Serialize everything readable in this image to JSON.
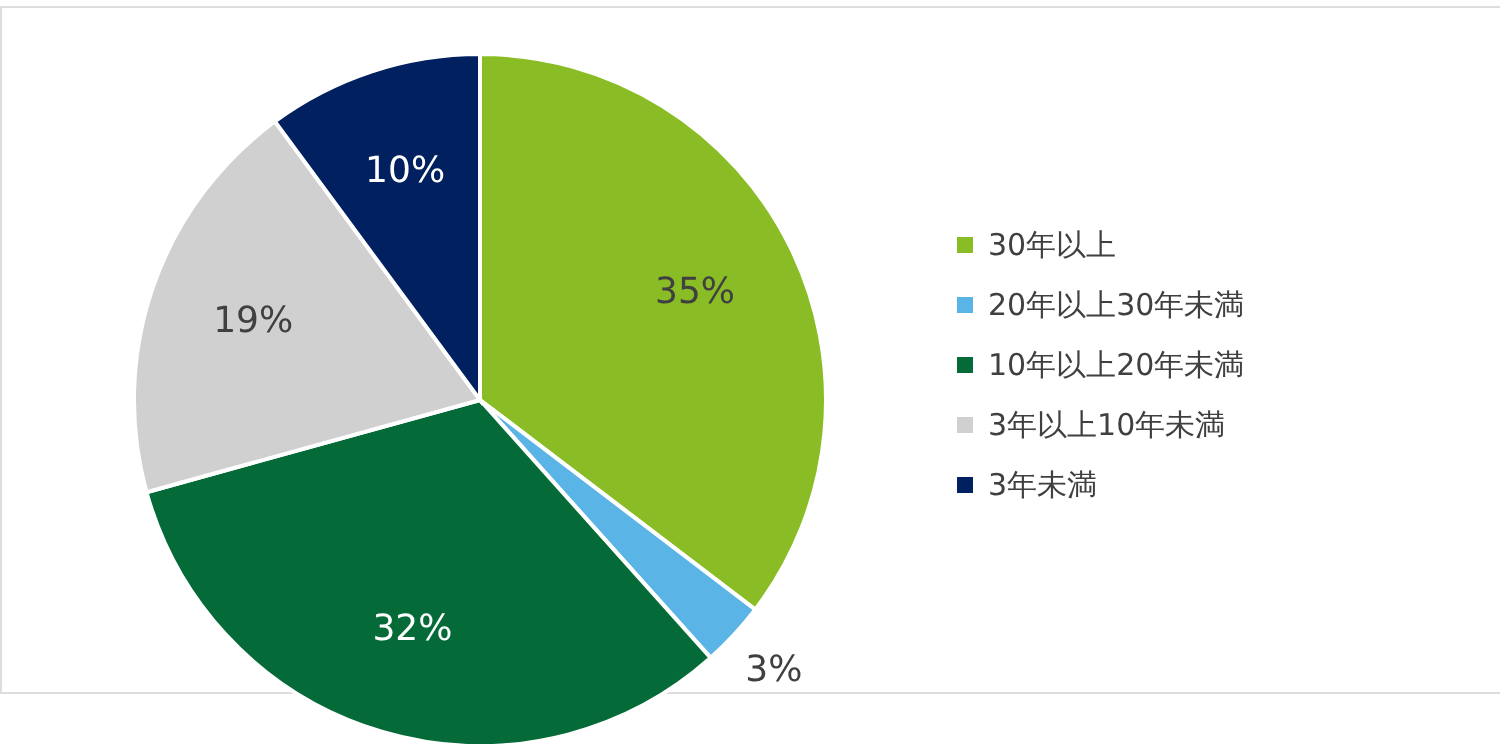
{
  "chart_data": {
    "type": "pie",
    "categories": [
      "30年以上",
      "20年以上30年未満",
      "10年以上20年未満",
      "3年以上10年未満",
      "3年未満"
    ],
    "values": [
      35,
      3,
      32,
      19,
      10
    ],
    "colors": [
      "#8abd25",
      "#5ab4e6",
      "#046a38",
      "#d0d0d0",
      "#002060"
    ],
    "value_labels": [
      "35%",
      "3%",
      "32%",
      "19%",
      "10%"
    ],
    "legend": "right"
  }
}
